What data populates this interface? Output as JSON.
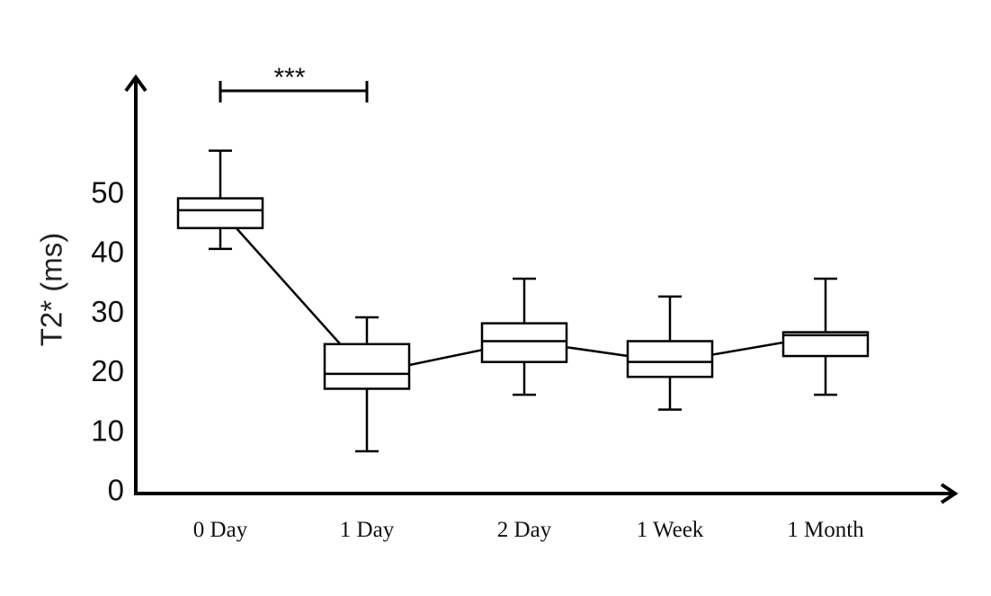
{
  "chart_data": {
    "type": "box",
    "title": "",
    "xlabel": "",
    "ylabel": "T2* (ms)",
    "ylim": [
      0,
      70
    ],
    "yticks": [
      0,
      10,
      20,
      30,
      40,
      50
    ],
    "categories": [
      "0 Day",
      "1 Day",
      "2 Day",
      "1 Week",
      "1 Month"
    ],
    "boxes": [
      {
        "category": "0 Day",
        "min": 40.5,
        "q1": 44.0,
        "median": 47.0,
        "q3": 49.0,
        "max": 57.0
      },
      {
        "category": "1 Day",
        "min": 6.5,
        "q1": 17.0,
        "median": 19.5,
        "q3": 24.5,
        "max": 29.0
      },
      {
        "category": "2 Day",
        "min": 16.0,
        "q1": 21.5,
        "median": 25.0,
        "q3": 28.0,
        "max": 35.5
      },
      {
        "category": "1 Week",
        "min": 13.5,
        "q1": 19.0,
        "median": 21.5,
        "q3": 25.0,
        "max": 32.5
      },
      {
        "category": "1 Month",
        "min": 16.0,
        "q1": 22.5,
        "median": 26.0,
        "q3": 26.5,
        "max": 35.5
      }
    ],
    "connecting_line": "median",
    "significance": {
      "from": "0 Day",
      "to": "1 Day",
      "label": "***"
    },
    "grid": false,
    "legend": "none"
  }
}
